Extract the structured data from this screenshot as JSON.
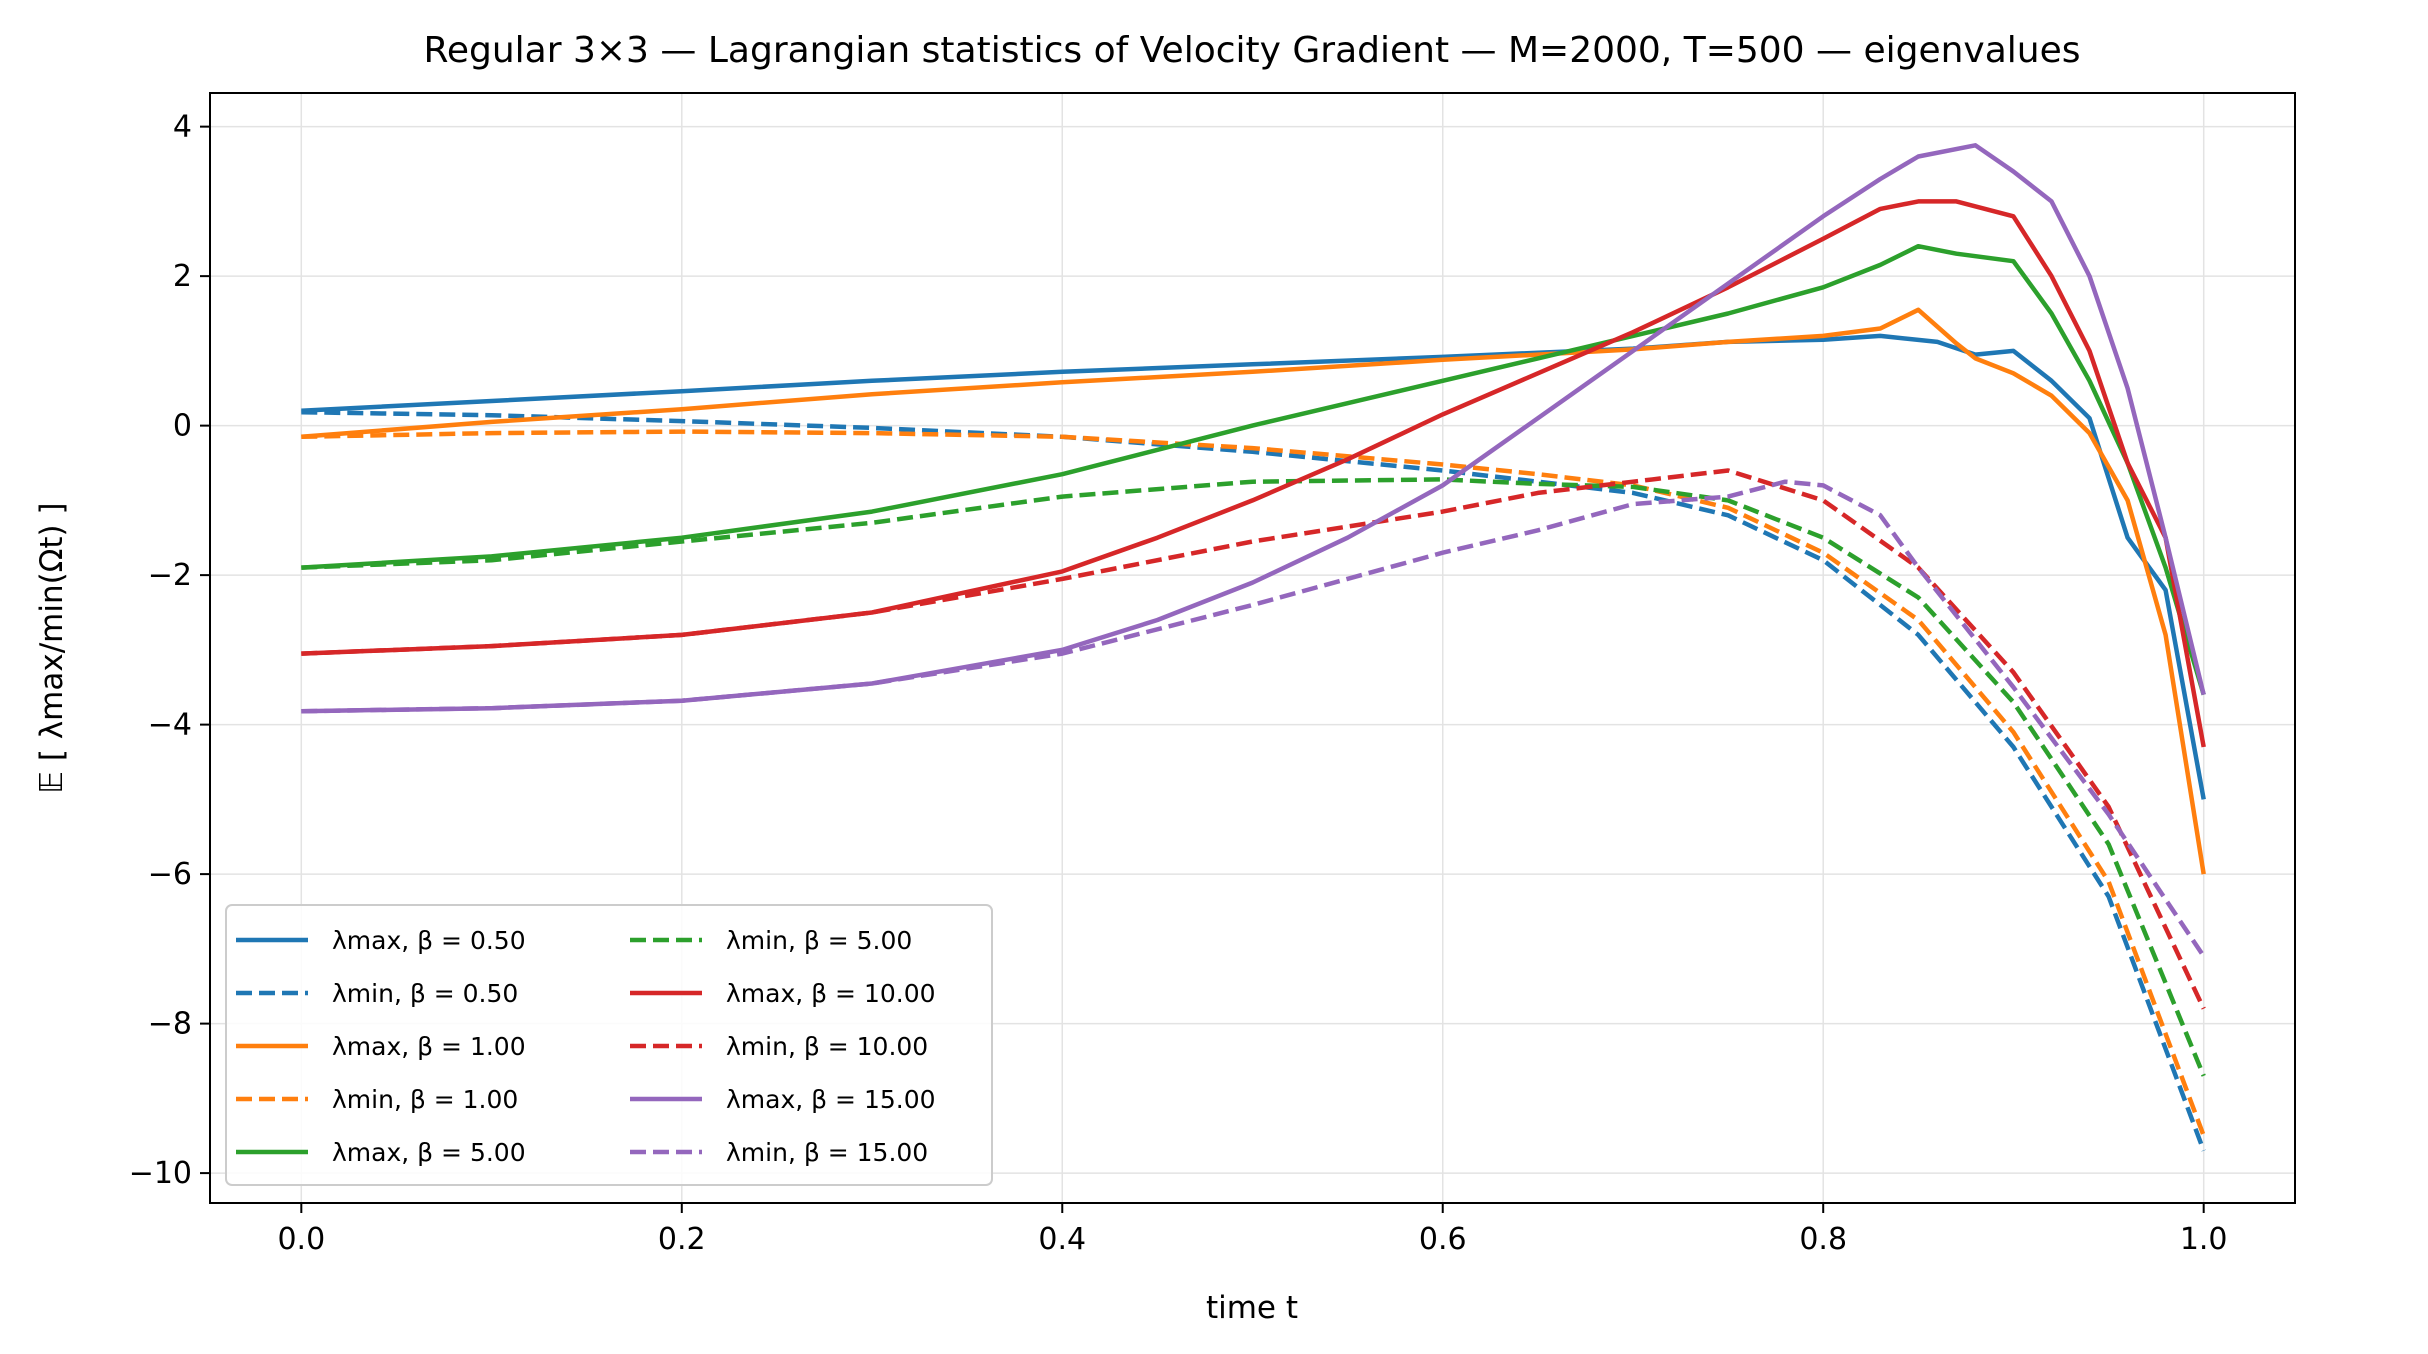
{
  "chart_data": {
    "type": "line",
    "title": "Regular 3×3 — Lagrangian statistics of Velocity Gradient — M=2000, T=500 — eigenvalues",
    "xlabel": "time t",
    "ylabel": "𝔼 [ λmax/min(Ωt) ]",
    "xlim": [
      -0.048,
      1.048
    ],
    "ylim": [
      -10.4,
      4.45
    ],
    "xticks": [
      "0.0",
      "0.2",
      "0.4",
      "0.6",
      "0.8",
      "1.0"
    ],
    "yticks": [
      "4",
      "2",
      "0",
      "−2",
      "−4",
      "−6",
      "−8",
      "−10"
    ],
    "grid": true,
    "legend_position": "lower-left",
    "series": [
      {
        "name": "λmax, β = 0.50",
        "kind": "max",
        "beta": "0.50",
        "color": "#1f77b4",
        "dash": false,
        "x": [
          0,
          0.1,
          0.2,
          0.3,
          0.4,
          0.5,
          0.6,
          0.7,
          0.75,
          0.8,
          0.83,
          0.86,
          0.88,
          0.9,
          0.92,
          0.94,
          0.96,
          0.98,
          1.0
        ],
        "y": [
          0.2,
          0.33,
          0.46,
          0.6,
          0.72,
          0.82,
          0.92,
          1.03,
          1.12,
          1.15,
          1.2,
          1.12,
          0.95,
          1.0,
          0.6,
          0.1,
          -1.5,
          -2.2,
          -5.0
        ]
      },
      {
        "name": "λmin, β = 0.50",
        "kind": "min",
        "beta": "0.50",
        "color": "#1f77b4",
        "dash": true,
        "x": [
          0,
          0.1,
          0.2,
          0.3,
          0.4,
          0.5,
          0.6,
          0.65,
          0.7,
          0.75,
          0.8,
          0.85,
          0.9,
          0.95,
          1.0
        ],
        "y": [
          0.18,
          0.14,
          0.06,
          -0.03,
          -0.15,
          -0.35,
          -0.6,
          -0.75,
          -0.9,
          -1.2,
          -1.8,
          -2.8,
          -4.3,
          -6.3,
          -9.7
        ]
      },
      {
        "name": "λmax, β = 1.00",
        "kind": "max",
        "beta": "1.00",
        "color": "#ff7f0e",
        "dash": false,
        "x": [
          0,
          0.1,
          0.2,
          0.3,
          0.4,
          0.5,
          0.6,
          0.7,
          0.75,
          0.8,
          0.83,
          0.85,
          0.87,
          0.88,
          0.9,
          0.92,
          0.94,
          0.96,
          0.98,
          1.0
        ],
        "y": [
          -0.15,
          0.05,
          0.22,
          0.42,
          0.58,
          0.72,
          0.88,
          1.02,
          1.12,
          1.2,
          1.3,
          1.55,
          1.1,
          0.9,
          0.7,
          0.4,
          -0.1,
          -1.0,
          -2.8,
          -6.0
        ]
      },
      {
        "name": "λmin, β = 1.00",
        "kind": "min",
        "beta": "1.00",
        "color": "#ff7f0e",
        "dash": true,
        "x": [
          0,
          0.1,
          0.2,
          0.3,
          0.4,
          0.5,
          0.6,
          0.65,
          0.7,
          0.75,
          0.8,
          0.85,
          0.9,
          0.95,
          1.0
        ],
        "y": [
          -0.15,
          -0.1,
          -0.08,
          -0.1,
          -0.15,
          -0.3,
          -0.52,
          -0.65,
          -0.8,
          -1.1,
          -1.7,
          -2.6,
          -4.1,
          -6.1,
          -9.5
        ]
      },
      {
        "name": "λmax, β = 5.00",
        "kind": "max",
        "beta": "5.00",
        "color": "#2ca02c",
        "dash": false,
        "x": [
          0,
          0.1,
          0.2,
          0.3,
          0.4,
          0.5,
          0.55,
          0.6,
          0.65,
          0.7,
          0.75,
          0.8,
          0.83,
          0.85,
          0.87,
          0.9,
          0.92,
          0.94,
          0.96,
          0.98,
          1.0
        ],
        "y": [
          -1.9,
          -1.75,
          -1.5,
          -1.15,
          -0.65,
          0.0,
          0.3,
          0.6,
          0.9,
          1.2,
          1.5,
          1.85,
          2.15,
          2.4,
          2.3,
          2.2,
          1.5,
          0.6,
          -0.5,
          -1.9,
          -3.6
        ]
      },
      {
        "name": "λmin, β = 5.00",
        "kind": "min",
        "beta": "5.00",
        "color": "#2ca02c",
        "dash": true,
        "x": [
          0,
          0.1,
          0.2,
          0.3,
          0.4,
          0.5,
          0.6,
          0.65,
          0.7,
          0.75,
          0.8,
          0.85,
          0.9,
          0.95,
          1.0
        ],
        "y": [
          -1.9,
          -1.8,
          -1.55,
          -1.3,
          -0.95,
          -0.75,
          -0.72,
          -0.78,
          -0.82,
          -1.0,
          -1.5,
          -2.3,
          -3.7,
          -5.6,
          -8.7
        ]
      },
      {
        "name": "λmax, β = 10.00",
        "kind": "max",
        "beta": "10.00",
        "color": "#d62728",
        "dash": false,
        "x": [
          0,
          0.1,
          0.2,
          0.3,
          0.4,
          0.45,
          0.5,
          0.55,
          0.6,
          0.65,
          0.7,
          0.75,
          0.8,
          0.83,
          0.85,
          0.87,
          0.9,
          0.92,
          0.94,
          0.96,
          0.98,
          1.0
        ],
        "y": [
          -3.05,
          -2.95,
          -2.8,
          -2.5,
          -1.95,
          -1.5,
          -1.0,
          -0.45,
          0.15,
          0.7,
          1.25,
          1.85,
          2.5,
          2.9,
          3.0,
          3.0,
          2.8,
          2.0,
          1.0,
          -0.5,
          -1.5,
          -4.3
        ]
      },
      {
        "name": "λmin, β = 10.00",
        "kind": "min",
        "beta": "10.00",
        "color": "#d62728",
        "dash": true,
        "x": [
          0,
          0.1,
          0.2,
          0.3,
          0.4,
          0.5,
          0.6,
          0.65,
          0.7,
          0.75,
          0.8,
          0.85,
          0.9,
          0.95,
          1.0
        ],
        "y": [
          -3.05,
          -2.95,
          -2.8,
          -2.5,
          -2.05,
          -1.55,
          -1.15,
          -0.9,
          -0.75,
          -0.6,
          -1.0,
          -1.9,
          -3.3,
          -5.1,
          -7.8
        ]
      },
      {
        "name": "λmax, β = 15.00",
        "kind": "max",
        "beta": "15.00",
        "color": "#9467bd",
        "dash": false,
        "x": [
          0,
          0.1,
          0.2,
          0.3,
          0.4,
          0.45,
          0.5,
          0.55,
          0.6,
          0.65,
          0.7,
          0.75,
          0.8,
          0.83,
          0.85,
          0.88,
          0.9,
          0.92,
          0.94,
          0.96,
          0.98,
          1.0
        ],
        "y": [
          -3.82,
          -3.78,
          -3.68,
          -3.45,
          -3.0,
          -2.6,
          -2.1,
          -1.5,
          -0.8,
          0.1,
          1.0,
          1.9,
          2.8,
          3.3,
          3.6,
          3.75,
          3.4,
          3.0,
          2.0,
          0.5,
          -1.5,
          -3.6
        ]
      },
      {
        "name": "λmin, β = 15.00",
        "kind": "min",
        "beta": "15.00",
        "color": "#9467bd",
        "dash": true,
        "x": [
          0,
          0.1,
          0.2,
          0.3,
          0.4,
          0.5,
          0.6,
          0.65,
          0.7,
          0.75,
          0.78,
          0.8,
          0.83,
          0.85,
          0.9,
          0.95,
          1.0
        ],
        "y": [
          -3.82,
          -3.78,
          -3.68,
          -3.45,
          -3.05,
          -2.4,
          -1.7,
          -1.4,
          -1.05,
          -0.95,
          -0.75,
          -0.8,
          -1.2,
          -1.9,
          -3.5,
          -5.2,
          -7.1
        ]
      }
    ]
  }
}
